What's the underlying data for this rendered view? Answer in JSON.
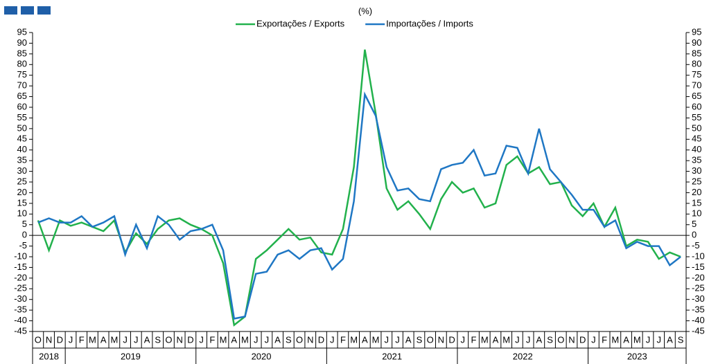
{
  "chart_data": {
    "type": "line",
    "unit": "(%)",
    "categories": [
      "O",
      "N",
      "D",
      "J",
      "F",
      "M",
      "A",
      "M",
      "J",
      "J",
      "A",
      "S",
      "O",
      "N",
      "D",
      "J",
      "F",
      "M",
      "A",
      "M",
      "J",
      "J",
      "A",
      "S",
      "O",
      "N",
      "D",
      "J",
      "F",
      "M",
      "A",
      "M",
      "J",
      "J",
      "A",
      "S",
      "O",
      "N",
      "D",
      "J",
      "F",
      "M",
      "A",
      "M",
      "J",
      "J",
      "A",
      "S",
      "O",
      "N",
      "D",
      "J",
      "F",
      "M",
      "A",
      "M",
      "J",
      "J",
      "A",
      "S"
    ],
    "category_years": [
      "2018",
      "2018",
      "2018",
      "2019",
      "2019",
      "2019",
      "2019",
      "2019",
      "2019",
      "2019",
      "2019",
      "2019",
      "2019",
      "2019",
      "2019",
      "2020",
      "2020",
      "2020",
      "2020",
      "2020",
      "2020",
      "2020",
      "2020",
      "2020",
      "2020",
      "2020",
      "2020",
      "2021",
      "2021",
      "2021",
      "2021",
      "2021",
      "2021",
      "2021",
      "2021",
      "2021",
      "2021",
      "2021",
      "2021",
      "2022",
      "2022",
      "2022",
      "2022",
      "2022",
      "2022",
      "2022",
      "2022",
      "2022",
      "2022",
      "2022",
      "2022",
      "2023",
      "2023",
      "2023",
      "2023",
      "2023",
      "2023",
      "2023",
      "2023",
      "2023"
    ],
    "series": [
      {
        "name": "Exportações / Exports",
        "color": "#22b14c",
        "values": [
          7,
          -7,
          7,
          4.5,
          6,
          4,
          2,
          7,
          -8,
          1,
          -4,
          3,
          7,
          8,
          5,
          3,
          0,
          -13,
          -42,
          -38,
          -11,
          -7,
          -2,
          3,
          -2,
          -1,
          -8,
          -9,
          3,
          32,
          87,
          57,
          22,
          12,
          16,
          10,
          3,
          17,
          25,
          20,
          22,
          13,
          15,
          33,
          37,
          29,
          32,
          24,
          25,
          14,
          9,
          15,
          4,
          13,
          -5,
          -2,
          -3,
          -11,
          -8,
          -10
        ]
      },
      {
        "name": "Importações / Imports",
        "color": "#1f77c4",
        "values": [
          6,
          8,
          6,
          6,
          9,
          4,
          6,
          9,
          -9,
          5,
          -6,
          9,
          5,
          -2,
          2,
          3,
          5,
          -7,
          -39,
          -38,
          -18,
          -17,
          -9,
          -7,
          -11,
          -7,
          -6,
          -16,
          -11,
          16,
          66,
          56,
          32,
          21,
          22,
          17,
          16,
          31,
          33,
          34,
          40,
          28,
          29,
          42,
          41,
          29,
          50,
          31,
          25,
          19,
          12,
          12,
          4,
          7,
          -6,
          -3,
          -5,
          -5,
          -14,
          -10
        ]
      }
    ],
    "ylim": [
      -45,
      95
    ],
    "yticks": [
      -45,
      -40,
      -35,
      -30,
      -25,
      -20,
      -15,
      -10,
      -5,
      0,
      5,
      10,
      15,
      20,
      25,
      30,
      35,
      40,
      45,
      50,
      55,
      60,
      65,
      70,
      75,
      80,
      85,
      90,
      95
    ]
  }
}
